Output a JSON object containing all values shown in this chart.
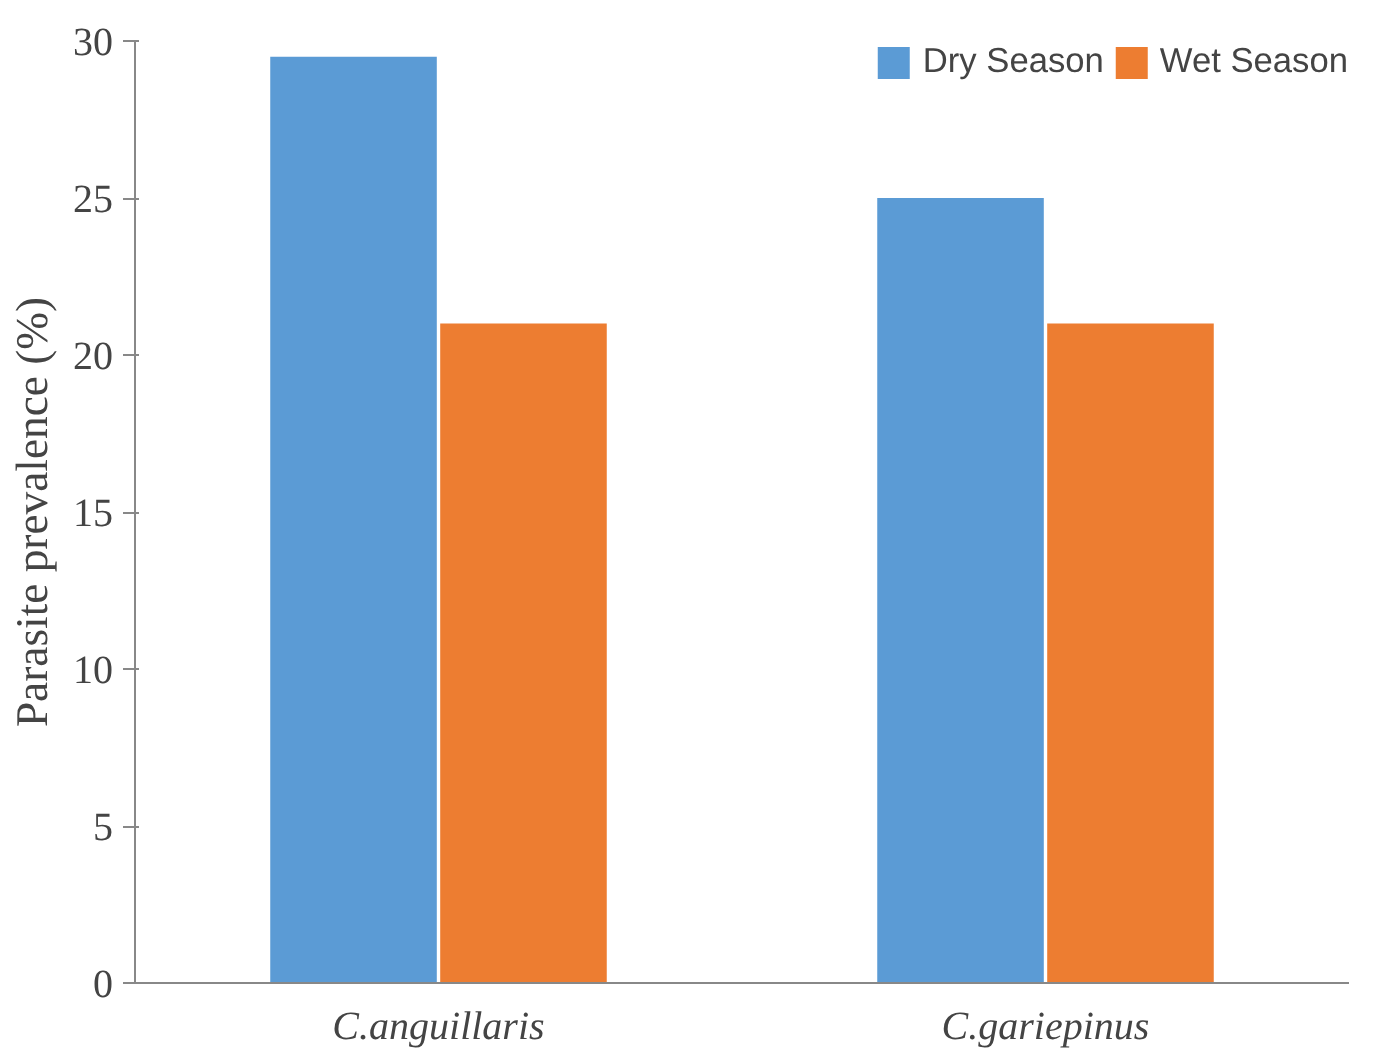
{
  "chart_data": {
    "type": "bar",
    "ylabel": "Parasite prevalence (%)",
    "categories": [
      "C.anguillaris",
      "C.gariepinus"
    ],
    "series": [
      {
        "name": "Dry Season",
        "color": "#5b9bd5",
        "values": [
          29.5,
          25
        ]
      },
      {
        "name": "Wet Season",
        "color": "#ed7d31",
        "values": [
          21,
          21
        ]
      }
    ],
    "ylim": [
      0,
      30
    ],
    "yticks": [
      0,
      5,
      10,
      15,
      20,
      25,
      30
    ],
    "grid": false,
    "legend": "top right"
  }
}
